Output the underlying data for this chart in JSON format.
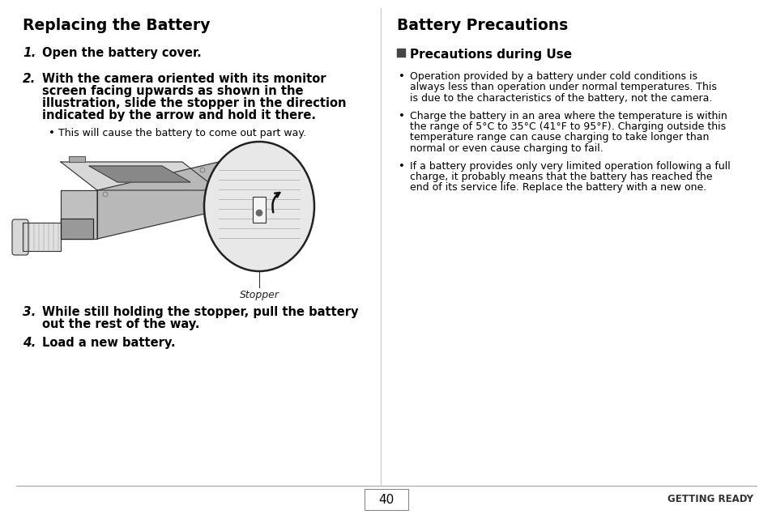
{
  "bg_color": "#ffffff",
  "page_number": "40",
  "footer_right": "GETTING READY",
  "left_title": "Replacing the Battery",
  "right_title": "Battery Precautions",
  "stopper_label": "Stopper",
  "right_subsection": "Precautions during Use",
  "step1": "Open the battery cover.",
  "step2_line1": "With the camera oriented with its monitor",
  "step2_line2": "screen facing upwards as shown in the",
  "step2_line3": "illustration, slide the stopper in the direction",
  "step2_line4": "indicated by the arrow and hold it there.",
  "step2_bullet": "This will cause the battery to come out part way.",
  "step3_line1": "While still holding the stopper, pull the battery",
  "step3_line2": "out the rest of the way.",
  "step4": "Load a new battery.",
  "bullet1_lines": [
    "Operation provided by a battery under cold conditions is",
    "always less than operation under normal temperatures. This",
    "is due to the characteristics of the battery, not the camera."
  ],
  "bullet2_lines": [
    "Charge the battery in an area where the temperature is within",
    "the range of 5°C to 35°C (41°F to 95°F). Charging outside this",
    "temperature range can cause charging to take longer than",
    "normal or even cause charging to fail."
  ],
  "bullet3_lines": [
    "If a battery provides only very limited operation following a full",
    "charge, it probably means that the battery has reached the",
    "end of its service life. Replace the battery with a new one."
  ]
}
